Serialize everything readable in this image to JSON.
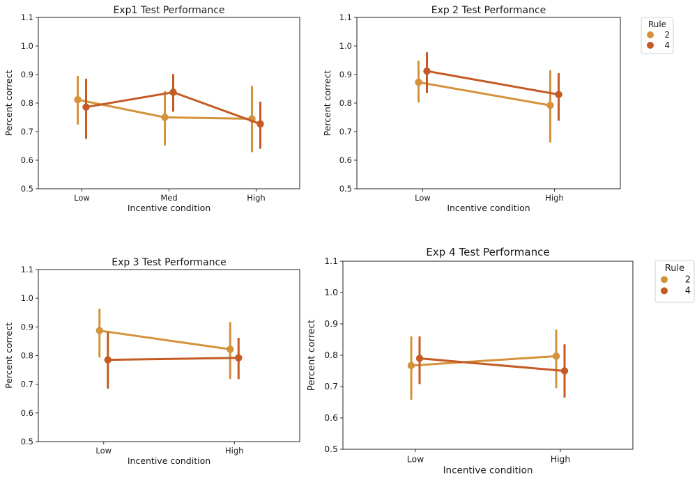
{
  "colors": {
    "rule2": "#d4923a",
    "rule4": "#c55a24"
  },
  "chart_data": [
    {
      "type": "line",
      "title": "Exp1 Test Performance",
      "xlabel": "Incentive condition",
      "ylabel": "Percent correct",
      "categories": [
        "Low",
        "Med",
        "High"
      ],
      "ylim": [
        0.5,
        1.1
      ],
      "yticks": [
        "0.5",
        "0.6",
        "0.7",
        "0.8",
        "0.9",
        "1.0",
        "1.1"
      ],
      "legend": null,
      "series": [
        {
          "name": "2",
          "values": [
            0.812,
            0.75,
            0.745
          ],
          "err_low": [
            0.725,
            0.652,
            0.628
          ],
          "err_high": [
            0.895,
            0.842,
            0.86
          ]
        },
        {
          "name": "4",
          "values": [
            0.786,
            0.838,
            0.727
          ],
          "err_low": [
            0.675,
            0.77,
            0.64
          ],
          "err_high": [
            0.885,
            0.902,
            0.805
          ]
        }
      ]
    },
    {
      "type": "line",
      "title": "Exp 2 Test Performance",
      "xlabel": "Incentive condition",
      "ylabel": "Percent correct",
      "categories": [
        "Low",
        "High"
      ],
      "ylim": [
        0.5,
        1.1
      ],
      "yticks": [
        "0.5",
        "0.6",
        "0.7",
        "0.8",
        "0.9",
        "1.0",
        "1.1"
      ],
      "legend": {
        "title": "Rule",
        "labels": [
          "2",
          "4"
        ],
        "placement": "outside-right"
      },
      "series": [
        {
          "name": "2",
          "values": [
            0.873,
            0.792
          ],
          "err_low": [
            0.802,
            0.662
          ],
          "err_high": [
            0.948,
            0.915
          ]
        },
        {
          "name": "4",
          "values": [
            0.912,
            0.83
          ],
          "err_low": [
            0.835,
            0.738
          ],
          "err_high": [
            0.978,
            0.905
          ]
        }
      ]
    },
    {
      "type": "line",
      "title": "Exp 3 Test Performance",
      "xlabel": "Incentive condition",
      "ylabel": "Percent correct",
      "categories": [
        "Low",
        "High"
      ],
      "ylim": [
        0.5,
        1.1
      ],
      "yticks": [
        "0.5",
        "0.6",
        "0.7",
        "0.8",
        "0.9",
        "1.0",
        "1.1"
      ],
      "legend": null,
      "series": [
        {
          "name": "2",
          "values": [
            0.887,
            0.822
          ],
          "err_low": [
            0.793,
            0.718
          ],
          "err_high": [
            0.963,
            0.917
          ]
        },
        {
          "name": "4",
          "values": [
            0.785,
            0.792
          ],
          "err_low": [
            0.685,
            0.718
          ],
          "err_high": [
            0.882,
            0.862
          ]
        }
      ]
    },
    {
      "type": "line",
      "title": "Exp 4 Test Performance",
      "xlabel": "Incentive condition",
      "ylabel": "Percent correct",
      "categories": [
        "Low",
        "High"
      ],
      "ylim": [
        0.5,
        1.1
      ],
      "yticks": [
        "0.5",
        "0.6",
        "0.7",
        "0.8",
        "0.9",
        "1.0",
        "1.1"
      ],
      "legend": {
        "title": "Rule",
        "labels": [
          "2",
          "4"
        ],
        "placement": "outside-right"
      },
      "series": [
        {
          "name": "2",
          "values": [
            0.767,
            0.797
          ],
          "err_low": [
            0.658,
            0.695
          ],
          "err_high": [
            0.86,
            0.882
          ]
        },
        {
          "name": "4",
          "values": [
            0.79,
            0.75
          ],
          "err_low": [
            0.708,
            0.665
          ],
          "err_high": [
            0.86,
            0.835
          ]
        }
      ]
    }
  ]
}
